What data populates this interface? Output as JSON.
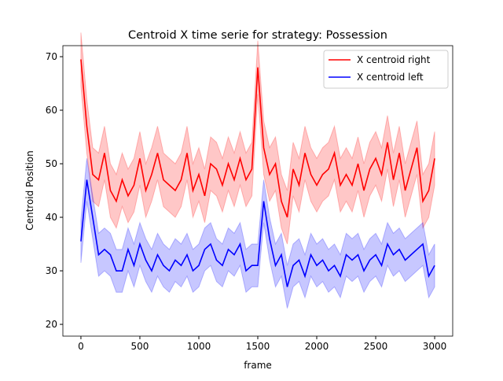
{
  "chart_data": {
    "type": "line",
    "title": "Centroid X time serie for strategy: Possession",
    "xlabel": "frame",
    "ylabel": "Centroid Position",
    "x": [
      0,
      50,
      100,
      150,
      200,
      250,
      300,
      350,
      400,
      450,
      500,
      550,
      600,
      650,
      700,
      750,
      800,
      850,
      900,
      950,
      1000,
      1050,
      1100,
      1150,
      1200,
      1250,
      1300,
      1350,
      1400,
      1450,
      1500,
      1550,
      1600,
      1650,
      1700,
      1750,
      1800,
      1850,
      1900,
      1950,
      2000,
      2050,
      2100,
      2150,
      2200,
      2250,
      2300,
      2350,
      2400,
      2450,
      2500,
      2550,
      2600,
      2650,
      2700,
      2750,
      2800,
      2850,
      2900,
      2950,
      3000
    ],
    "series": [
      {
        "name": "X centroid right",
        "color": "#ff0000",
        "band": 5,
        "values": [
          69.5,
          57,
          48,
          47,
          52,
          45,
          43,
          47,
          44,
          46,
          51,
          45,
          48,
          52,
          47,
          46,
          45,
          47,
          52,
          45,
          48,
          44,
          50,
          49,
          46,
          50,
          47,
          51,
          47,
          49,
          68,
          53,
          48,
          50,
          43,
          40,
          49,
          46,
          52,
          48,
          46,
          48,
          49,
          52,
          46,
          48,
          46,
          50,
          45,
          49,
          51,
          48,
          54,
          47,
          52,
          45,
          49,
          53,
          43,
          45,
          51
        ]
      },
      {
        "name": "X centroid left",
        "color": "#0000ff",
        "band": 4,
        "values": [
          35.5,
          47,
          40,
          33,
          34,
          33,
          30,
          30,
          34,
          31,
          35,
          32,
          30,
          33,
          31,
          30,
          32,
          31,
          33,
          30,
          31,
          34,
          35,
          32,
          31,
          34,
          33,
          35,
          30,
          31,
          31,
          43,
          36,
          31,
          33,
          27,
          31,
          32,
          29,
          33,
          31,
          32,
          30,
          31,
          29,
          33,
          32,
          33,
          30,
          32,
          33,
          31,
          35,
          33,
          34,
          32,
          33,
          34,
          35,
          29,
          31
        ]
      }
    ],
    "xlim": [
      -153,
      3153
    ],
    "ylim": [
      17.8,
      72.06
    ],
    "xticks": [
      0,
      500,
      1000,
      1500,
      2000,
      2500,
      3000
    ],
    "yticks": [
      20,
      30,
      40,
      50,
      60,
      70
    ],
    "legend": "upper right"
  }
}
